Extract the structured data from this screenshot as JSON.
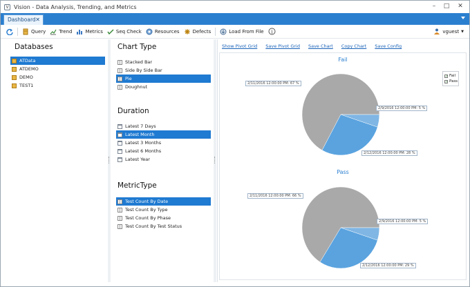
{
  "window": {
    "title": "Vision - Data Analysis, Trending, and Metrics"
  },
  "tabs": [
    {
      "label": "Dashboard"
    }
  ],
  "toolbar": {
    "items": [
      {
        "label": "Query",
        "icon": "query-icon"
      },
      {
        "label": "Trend",
        "icon": "trend-icon"
      },
      {
        "label": "Metrics",
        "icon": "metrics-icon"
      },
      {
        "label": "Seq Check",
        "icon": "seq-check-icon"
      },
      {
        "label": "Resources",
        "icon": "resources-icon"
      },
      {
        "label": "Defects",
        "icon": "defects-icon"
      },
      {
        "label": "Load From File",
        "icon": "load-file-icon"
      }
    ],
    "user": "vguest"
  },
  "databases": {
    "title": "Databases",
    "items": [
      "ATData",
      "ATDEMO",
      "DEMO",
      "TEST1"
    ],
    "selected": 0
  },
  "chart_type": {
    "title": "Chart Type",
    "items": [
      "Stacked Bar",
      "Side By Side Bar",
      "Pie",
      "Doughnut"
    ],
    "selected": 2
  },
  "duration": {
    "title": "Duration",
    "items": [
      "Latest 7 Days",
      "Latest Month",
      "Latest 3 Months",
      "Latest 6 Months",
      "Latest Year"
    ],
    "selected": 1
  },
  "metric_type": {
    "title": "MetricType",
    "items": [
      "Test Count By Date",
      "Test Count By Type",
      "Test Count By Phase",
      "Test Count By Test Status"
    ],
    "selected": 0
  },
  "chart_links": [
    "Show Pivot Grid",
    "Save Pivot Grid",
    "Save Chart",
    "Copy Chart",
    "Save Config"
  ],
  "legend": [
    "Fail",
    "Pass"
  ],
  "colors": {
    "accent": "#1f7ad1",
    "slice_a": "#a9a9a9",
    "slice_b": "#5aa3df",
    "slice_c": "#7fb6e4"
  },
  "chart_data": [
    {
      "type": "pie",
      "title": "Fail",
      "labels": [
        "2/11/2016 12:00:00 PM",
        "2/9/2016 12:00:00 PM",
        "2/12/2016 12:00:00 PM"
      ],
      "values": [
        67,
        5,
        28
      ],
      "display": [
        "2/11/2016 12:00:00 PM: 67 %",
        "2/9/2016 12:00:00 PM: 5 %",
        "2/12/2016 12:00:00 PM: 28 %"
      ]
    },
    {
      "type": "pie",
      "title": "Pass",
      "labels": [
        "2/11/2016 12:00:00 PM",
        "2/9/2016 12:00:00 PM",
        "2/12/2016 12:00:00 PM"
      ],
      "values": [
        66,
        5,
        29
      ],
      "display": [
        "2/11/2016 12:00:00 PM: 66 %",
        "2/9/2016 12:00:00 PM: 5 %",
        "2/12/2016 12:00:00 PM: 29 %"
      ]
    }
  ]
}
